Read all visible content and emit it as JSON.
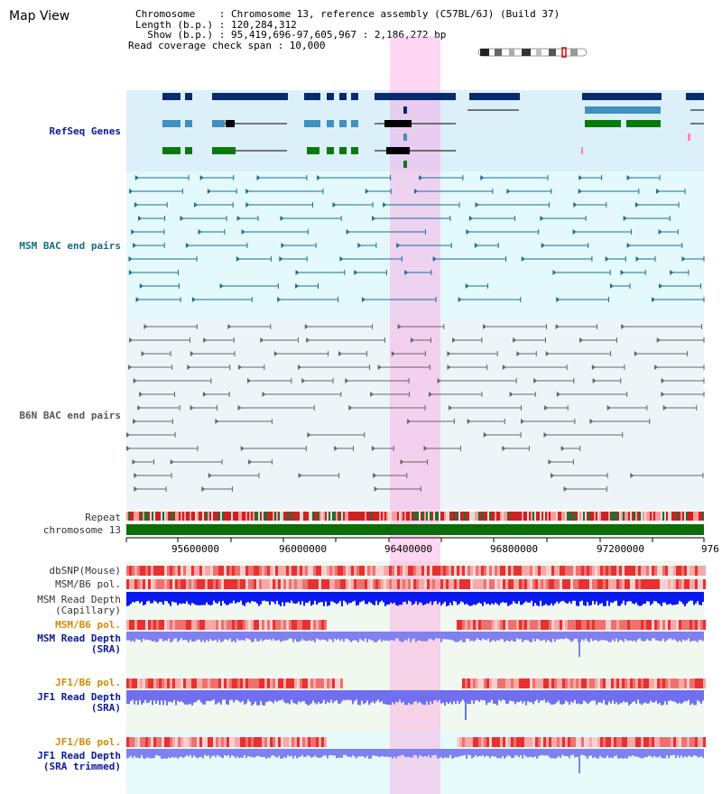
{
  "page": {
    "title": "Map View"
  },
  "info": {
    "chromosome_line": "Chromosome    : Chromosome 13, reference assembly (C57BL/6J) (Build 37)",
    "length_line": "Length (b.p.) : 120,284,312",
    "show_line": "  Show (b.p.) : 95,419,696-97,605,967 : 2,186,272 bp",
    "coverage_line": "Read coverage check span : 10,000"
  },
  "tracks": {
    "refseq": "RefSeq Genes",
    "msm_bac": "MSM BAC end pairs",
    "b6n_bac": "B6N BAC end pairs",
    "repeat": "Repeat",
    "chromosome": "chromosome 13",
    "dbsnp": "dbSNP(Mouse)",
    "msm_b6_pol_1": "MSM/B6 pol.",
    "msm_depth_cap_1": "MSM Read Depth",
    "msm_depth_cap_2": "(Capillary)",
    "msm_b6_pol_2": "MSM/B6 pol.",
    "msm_depth_sra_1": "MSM Read Depth",
    "msm_depth_sra_2": "(SRA)",
    "jf1_b6_pol_1": "JF1/B6 pol.",
    "jf1_depth_1": "JF1 Read Depth",
    "jf1_depth_2": "(SRA)",
    "jf1_b6_pol_2": "JF1/B6 pol.",
    "jf1_depth_trim_1": "JF1 Read Depth",
    "jf1_depth_trim_2": "(SRA trimmed)"
  },
  "axis": {
    "ticks": [
      "95600000",
      "96000000",
      "96400000",
      "96800000",
      "97200000",
      "976"
    ]
  },
  "colors": {
    "refseq_bg": "#ddf0fa",
    "msm_bg": "#e5fafc",
    "b6n_bg": "#eef6f9",
    "chromosome": "#0a6e0a",
    "highlight": "#ffb0e6",
    "depth_blue": "#0a1aee",
    "depth_light": "#8080f0",
    "pol_red": "#ee3030"
  }
}
